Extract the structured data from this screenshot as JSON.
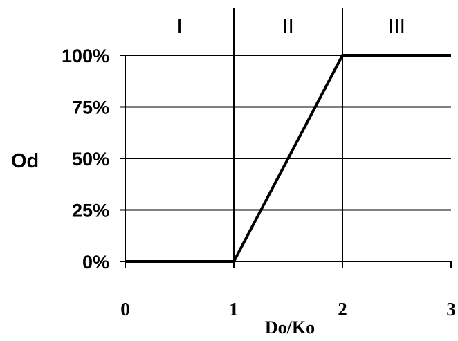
{
  "chart_data": {
    "type": "line",
    "title": "",
    "xlabel": "Do/Ko",
    "ylabel": "Od",
    "xlim": [
      0,
      3
    ],
    "ylim": [
      0,
      100
    ],
    "x_ticks": [
      "0",
      "1",
      "2",
      "3"
    ],
    "y_ticks": [
      "0%",
      "25%",
      "50%",
      "75%",
      "100%"
    ],
    "grid": true,
    "regions": [
      {
        "label": "I",
        "x_range": [
          0,
          1
        ]
      },
      {
        "label": "II",
        "x_range": [
          1,
          2
        ]
      },
      {
        "label": "III",
        "x_range": [
          2,
          3
        ]
      }
    ],
    "series": [
      {
        "x": [
          0,
          1,
          2,
          3
        ],
        "y": [
          0,
          0,
          100,
          100
        ]
      }
    ]
  }
}
